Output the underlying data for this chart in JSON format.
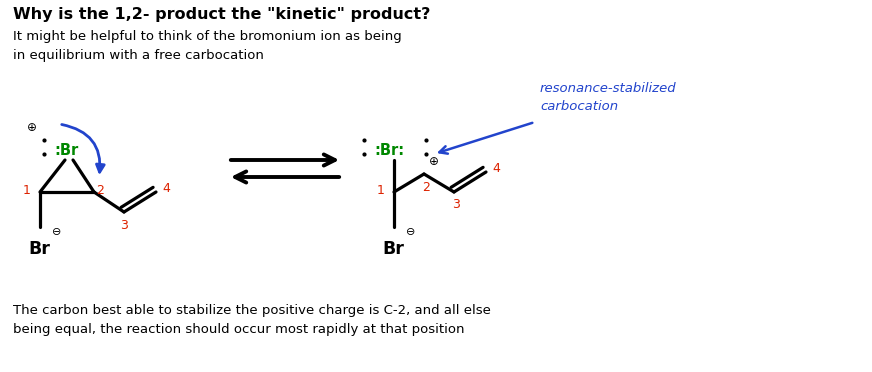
{
  "title": "Why is the 1,2- product the \"kinetic\" product?",
  "subtitle": "It might be helpful to think of the bromonium ion as being\nin equilibrium with a free carbocation",
  "bottom_text": "The carbon best able to stabilize the positive charge is C-2, and all else\nbeing equal, the reaction should occur most rapidly at that position",
  "resonance_label": "resonance-stabilized\ncarbocation",
  "bg_color": "#ffffff",
  "title_color": "#000000",
  "br_color": "#008800",
  "number_color": "#dd2200",
  "blue_arrow_color": "#2244cc",
  "annotation_color": "#2244cc"
}
